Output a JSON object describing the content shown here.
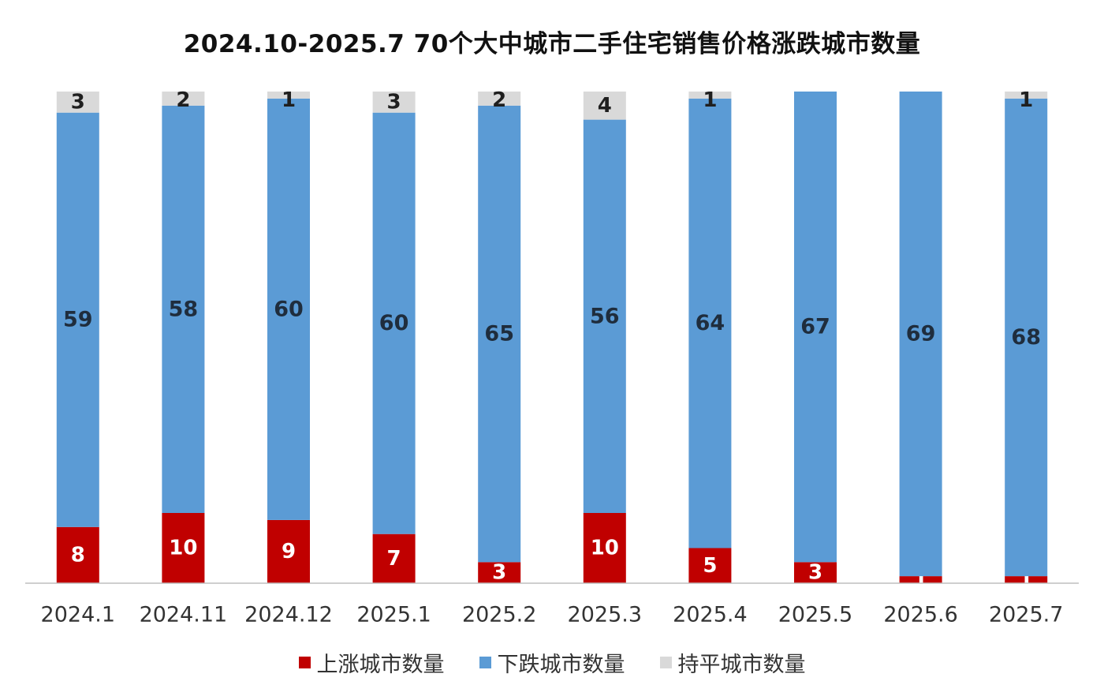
{
  "chart_data": {
    "type": "bar",
    "stacked": true,
    "title": "2024.10-2025.7  70个大中城市二手住宅销售价格涨跌城市数量",
    "categories": [
      "2024.1",
      "2024.11",
      "2024.12",
      "2025.1",
      "2025.2",
      "2025.3",
      "2025.4",
      "2025.5",
      "2025.6",
      "2025.7"
    ],
    "series": [
      {
        "name": "上涨城市数量",
        "color": "#c00000",
        "label_color": "#ffffff",
        "values": [
          8,
          10,
          9,
          7,
          3,
          10,
          5,
          3,
          1,
          1
        ]
      },
      {
        "name": "下跌城市数量",
        "color": "#5b9bd5",
        "label_color": "#1f2d3d",
        "values": [
          59,
          58,
          60,
          60,
          65,
          56,
          64,
          67,
          69,
          68
        ]
      },
      {
        "name": "持平城市数量",
        "color": "#d9d9d9",
        "label_color": "#1f1f1f",
        "values": [
          3,
          2,
          1,
          3,
          2,
          4,
          1,
          null,
          null,
          1
        ]
      }
    ],
    "ylim": [
      0,
      70
    ],
    "grid": false,
    "legend_position": "bottom"
  }
}
